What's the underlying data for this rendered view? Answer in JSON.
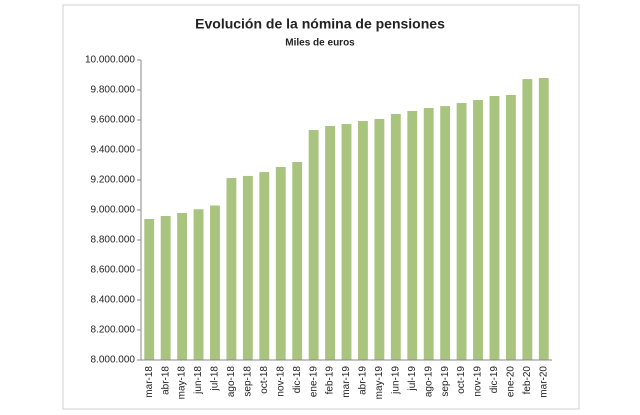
{
  "chart_data": {
    "type": "bar",
    "title": "Evolución de la nómina de pensiones",
    "subtitle": "Miles de euros",
    "categories": [
      "mar-18",
      "abr-18",
      "may-18",
      "jun-18",
      "jul-18",
      "ago-18",
      "sep-18",
      "oct-18",
      "nov-18",
      "dic-18",
      "ene-19",
      "feb-19",
      "mar-19",
      "abr-19",
      "may-19",
      "jun-19",
      "jul-19",
      "ago-19",
      "sep-19",
      "oct-19",
      "nov-19",
      "dic-19",
      "ene-20",
      "feb-20",
      "mar-20"
    ],
    "values": [
      8940000,
      8960000,
      8980000,
      9005000,
      9030000,
      9213000,
      9227000,
      9253000,
      9287000,
      9320000,
      9533000,
      9560000,
      9573000,
      9593000,
      9607000,
      9640000,
      9660000,
      9680000,
      9693000,
      9713000,
      9733000,
      9760000,
      9767000,
      9873000,
      9880000
    ],
    "color": "#a9c47f",
    "ylim": [
      8000000,
      10000000
    ],
    "yticks": [
      {
        "value": 8000000,
        "label": "8.000.000"
      },
      {
        "value": 8200000,
        "label": "8.200.000"
      },
      {
        "value": 8400000,
        "label": "8.400.000"
      },
      {
        "value": 8600000,
        "label": "8.600.000"
      },
      {
        "value": 8800000,
        "label": "8.800.000"
      },
      {
        "value": 9000000,
        "label": "9.000.000"
      },
      {
        "value": 9200000,
        "label": "9.200.000"
      },
      {
        "value": 9400000,
        "label": "9.400.000"
      },
      {
        "value": 9600000,
        "label": "9.600.000"
      },
      {
        "value": 9800000,
        "label": "9.800.000"
      },
      {
        "value": 10000000,
        "label": "10.000.000"
      }
    ],
    "grid": false
  }
}
